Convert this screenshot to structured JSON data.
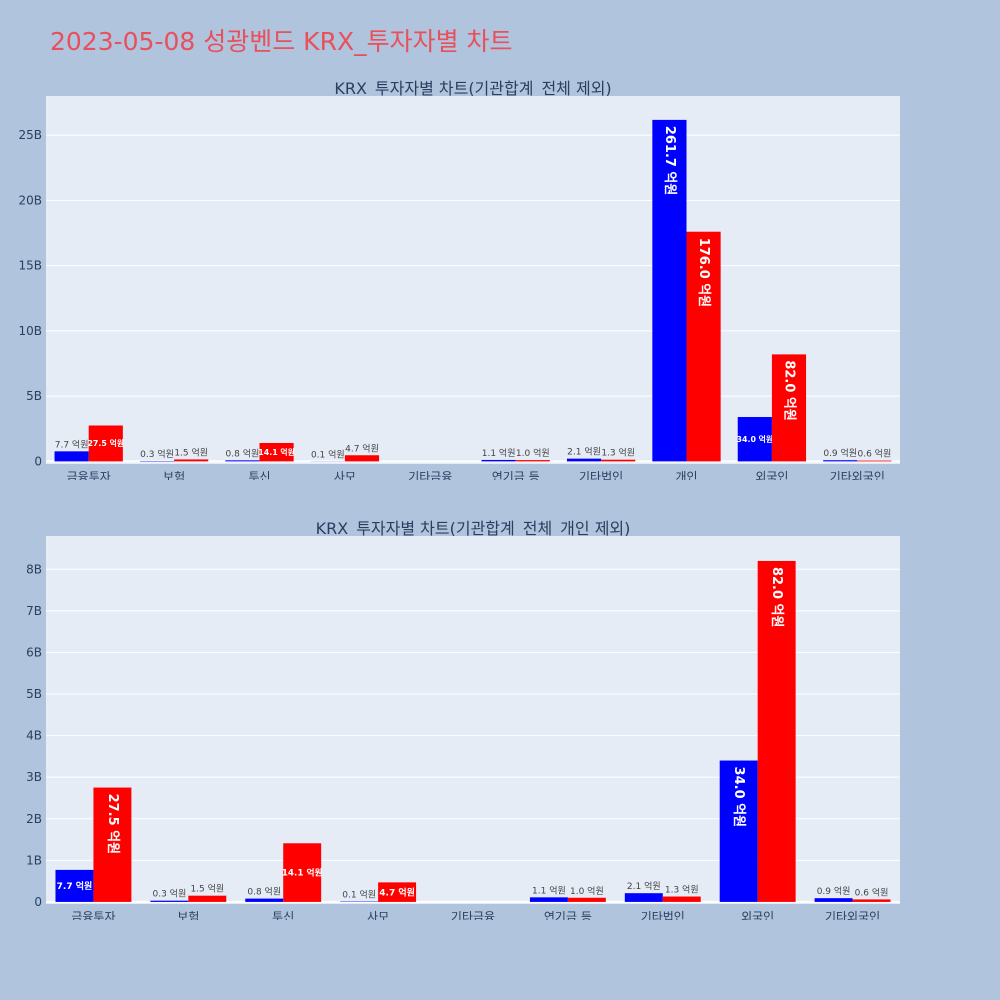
{
  "page": {
    "title": "2023-05-08 성광벤드 KRX_투자자별 차트"
  },
  "colors": {
    "buy": "#0000ff",
    "sell": "#ff0000",
    "plot_bg": "#e5ecf6",
    "page_bg": "#b0c4de",
    "title": "#e8505b"
  },
  "chart_data": [
    {
      "type": "bar",
      "title": "KRX_투자자별 차트(기관합계_전체 제외)",
      "categories": [
        "금융투자",
        "보험",
        "투신",
        "사모",
        "기타금융",
        "연기금 등",
        "기타법인",
        "개인",
        "외국인",
        "기타외국인"
      ],
      "series": [
        {
          "values": [
            0.77,
            0.03,
            0.08,
            0.01,
            0,
            0.11,
            0.21,
            26.17,
            3.4,
            0.09
          ],
          "labels": [
            "7.7 억원",
            "0.3 억원",
            "0.8 억원",
            "0.1 억원",
            "",
            "1.1 억원",
            "2.1 억원",
            "261.7 억원",
            "34.0 억원",
            "0.9 억원"
          ]
        },
        {
          "values": [
            2.75,
            0.15,
            1.41,
            0.47,
            0,
            0.1,
            0.13,
            17.6,
            8.2,
            0.06
          ],
          "labels": [
            "27.5 억원",
            "1.5 억원",
            "14.1 억원",
            "4.7 억원",
            "",
            "1.0 억원",
            "1.3 억원",
            "176.0 억원",
            "82.0 억원",
            "0.6 억원"
          ]
        }
      ],
      "yticks": [
        0,
        5,
        10,
        15,
        20,
        25
      ],
      "ytick_labels": [
        "0",
        "5B",
        "10B",
        "15B",
        "20B",
        "25B"
      ],
      "ylim": [
        -0.2,
        28.0
      ],
      "grid": true
    },
    {
      "type": "bar",
      "title": "KRX_투자자별 차트(기관합계_전체_개인 제외)",
      "categories": [
        "금융투자",
        "보험",
        "투신",
        "사모",
        "기타금융",
        "연기금 등",
        "기타법인",
        "외국인",
        "기타외국인"
      ],
      "series": [
        {
          "values": [
            0.77,
            0.03,
            0.08,
            0.01,
            0,
            0.11,
            0.21,
            3.4,
            0.09
          ],
          "labels": [
            "7.7 억원",
            "0.3 억원",
            "0.8 억원",
            "0.1 억원",
            "",
            "1.1 억원",
            "2.1 억원",
            "34.0 억원",
            "0.9 억원"
          ]
        },
        {
          "values": [
            2.75,
            0.15,
            1.41,
            0.47,
            0,
            0.1,
            0.13,
            8.2,
            0.06
          ],
          "labels": [
            "27.5 억원",
            "1.5 억원",
            "14.1 억원",
            "4.7 억원",
            "",
            "1.0 억원",
            "1.3 억원",
            "82.0 억원",
            "0.6 억원"
          ]
        }
      ],
      "yticks": [
        0,
        1,
        2,
        3,
        4,
        5,
        6,
        7,
        8
      ],
      "ytick_labels": [
        "0",
        "1B",
        "2B",
        "3B",
        "4B",
        "5B",
        "6B",
        "7B",
        "8B"
      ],
      "ylim": [
        -0.05,
        8.8
      ],
      "grid": true
    }
  ]
}
